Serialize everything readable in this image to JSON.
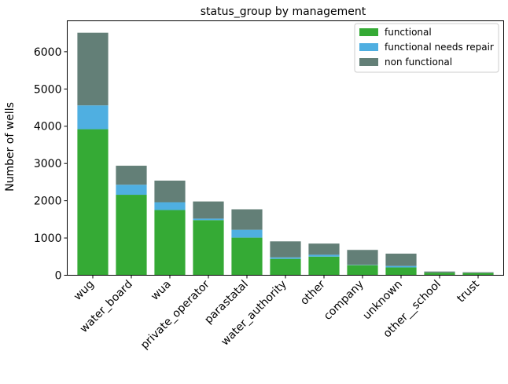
{
  "chart_data": {
    "type": "bar",
    "stacked": true,
    "title": "status_group by management",
    "xlabel": "",
    "ylabel": "Number of wells",
    "ylim": [
      0,
      6830
    ],
    "yticks": [
      0,
      1000,
      2000,
      3000,
      4000,
      5000,
      6000
    ],
    "grid": false,
    "legend_position": "top-right",
    "categories": [
      "wug",
      "water_board",
      "wua",
      "private_operator",
      "parastatal",
      "water_authority",
      "other",
      "company",
      "unknown",
      "other - school",
      "trust"
    ],
    "category_labels": [
      "wug",
      "water_board",
      "wua",
      "private_operator",
      "parastatal",
      "water_authority",
      "other",
      "company",
      "unknown",
      "other__school",
      "trust"
    ],
    "series": [
      {
        "name": "functional",
        "color": "#35aa35",
        "values": [
          3920,
          2160,
          1750,
          1480,
          1010,
          440,
          500,
          270,
          210,
          70,
          60
        ]
      },
      {
        "name": "functional needs repair",
        "color": "#4fafe1",
        "values": [
          640,
          270,
          210,
          40,
          210,
          40,
          50,
          10,
          40,
          0,
          0
        ]
      },
      {
        "name": "non functional",
        "color": "#637f77",
        "values": [
          1950,
          510,
          580,
          460,
          550,
          430,
          300,
          400,
          330,
          30,
          20
        ]
      }
    ]
  }
}
